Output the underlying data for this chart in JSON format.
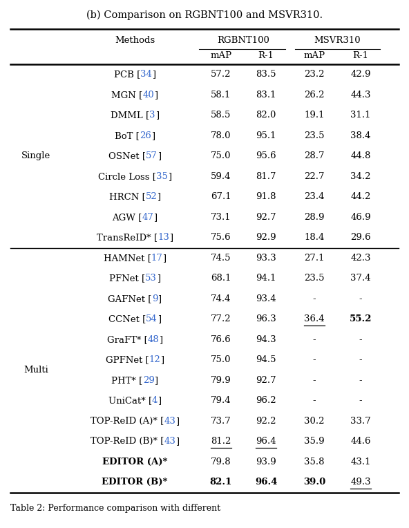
{
  "title": "(b) Comparison on RGBNT100 and MSVR310.",
  "footer": "Table 2: Performance comparison with different",
  "rows": [
    {
      "group": "Single",
      "method": "PCB",
      "ref": "34",
      "r100_map": "57.2",
      "r100_r1": "83.5",
      "msvr_map": "23.2",
      "msvr_r1": "42.9",
      "bold": [],
      "underline": []
    },
    {
      "group": "Single",
      "method": "MGN",
      "ref": "40",
      "r100_map": "58.1",
      "r100_r1": "83.1",
      "msvr_map": "26.2",
      "msvr_r1": "44.3",
      "bold": [],
      "underline": []
    },
    {
      "group": "Single",
      "method": "DMML",
      "ref": "3",
      "r100_map": "58.5",
      "r100_r1": "82.0",
      "msvr_map": "19.1",
      "msvr_r1": "31.1",
      "bold": [],
      "underline": []
    },
    {
      "group": "Single",
      "method": "BoT",
      "ref": "26",
      "r100_map": "78.0",
      "r100_r1": "95.1",
      "msvr_map": "23.5",
      "msvr_r1": "38.4",
      "bold": [],
      "underline": []
    },
    {
      "group": "Single",
      "method": "OSNet",
      "ref": "57",
      "r100_map": "75.0",
      "r100_r1": "95.6",
      "msvr_map": "28.7",
      "msvr_r1": "44.8",
      "bold": [],
      "underline": []
    },
    {
      "group": "Single",
      "method": "Circle Loss",
      "ref": "35",
      "r100_map": "59.4",
      "r100_r1": "81.7",
      "msvr_map": "22.7",
      "msvr_r1": "34.2",
      "bold": [],
      "underline": []
    },
    {
      "group": "Single",
      "method": "HRCN",
      "ref": "52",
      "r100_map": "67.1",
      "r100_r1": "91.8",
      "msvr_map": "23.4",
      "msvr_r1": "44.2",
      "bold": [],
      "underline": []
    },
    {
      "group": "Single",
      "method": "AGW",
      "ref": "47",
      "r100_map": "73.1",
      "r100_r1": "92.7",
      "msvr_map": "28.9",
      "msvr_r1": "46.9",
      "bold": [],
      "underline": []
    },
    {
      "group": "Single",
      "method": "TransReID*",
      "ref": "13",
      "r100_map": "75.6",
      "r100_r1": "92.9",
      "msvr_map": "18.4",
      "msvr_r1": "29.6",
      "bold": [],
      "underline": []
    },
    {
      "group": "Multi",
      "method": "HAMNet",
      "ref": "17",
      "r100_map": "74.5",
      "r100_r1": "93.3",
      "msvr_map": "27.1",
      "msvr_r1": "42.3",
      "bold": [],
      "underline": []
    },
    {
      "group": "Multi",
      "method": "PFNet",
      "ref": "53",
      "r100_map": "68.1",
      "r100_r1": "94.1",
      "msvr_map": "23.5",
      "msvr_r1": "37.4",
      "bold": [],
      "underline": []
    },
    {
      "group": "Multi",
      "method": "GAFNet",
      "ref": "9",
      "r100_map": "74.4",
      "r100_r1": "93.4",
      "msvr_map": "-",
      "msvr_r1": "-",
      "bold": [],
      "underline": []
    },
    {
      "group": "Multi",
      "method": "CCNet",
      "ref": "54",
      "r100_map": "77.2",
      "r100_r1": "96.3",
      "msvr_map": "36.4",
      "msvr_r1": "55.2",
      "bold": [
        "msvr_r1"
      ],
      "underline": [
        "msvr_map"
      ]
    },
    {
      "group": "Multi",
      "method": "GraFT*",
      "ref": "48",
      "r100_map": "76.6",
      "r100_r1": "94.3",
      "msvr_map": "-",
      "msvr_r1": "-",
      "bold": [],
      "underline": []
    },
    {
      "group": "Multi",
      "method": "GPFNet",
      "ref": "12",
      "r100_map": "75.0",
      "r100_r1": "94.5",
      "msvr_map": "-",
      "msvr_r1": "-",
      "bold": [],
      "underline": []
    },
    {
      "group": "Multi",
      "method": "PHT*",
      "ref": "29",
      "r100_map": "79.9",
      "r100_r1": "92.7",
      "msvr_map": "-",
      "msvr_r1": "-",
      "bold": [],
      "underline": []
    },
    {
      "group": "Multi",
      "method": "UniCat*",
      "ref": "4",
      "r100_map": "79.4",
      "r100_r1": "96.2",
      "msvr_map": "-",
      "msvr_r1": "-",
      "bold": [],
      "underline": []
    },
    {
      "group": "Multi",
      "method": "TOP-ReID (A)*",
      "ref": "43",
      "r100_map": "73.7",
      "r100_r1": "92.2",
      "msvr_map": "30.2",
      "msvr_r1": "33.7",
      "bold": [],
      "underline": []
    },
    {
      "group": "Multi",
      "method": "TOP-ReID (B)*",
      "ref": "43",
      "r100_map": "81.2",
      "r100_r1": "96.4",
      "msvr_map": "35.9",
      "msvr_r1": "44.6",
      "bold": [],
      "underline": [
        "r100_map",
        "r100_r1"
      ]
    },
    {
      "group": "Multi",
      "method": "EDITOR (A)*",
      "ref": "",
      "r100_map": "79.8",
      "r100_r1": "93.9",
      "msvr_map": "35.8",
      "msvr_r1": "43.1",
      "bold": [
        "method"
      ],
      "underline": []
    },
    {
      "group": "Multi",
      "method": "EDITOR (B)*",
      "ref": "",
      "r100_map": "82.1",
      "r100_r1": "96.4",
      "msvr_map": "39.0",
      "msvr_r1": "49.3",
      "bold": [
        "method",
        "r100_map",
        "r100_r1",
        "msvr_map"
      ],
      "underline": [
        "msvr_r1"
      ]
    }
  ],
  "n_single": 9,
  "n_multi": 12,
  "bg_color": "#ffffff",
  "text_color": "#000000",
  "blue_color": "#3366cc",
  "line_color": "#000000"
}
